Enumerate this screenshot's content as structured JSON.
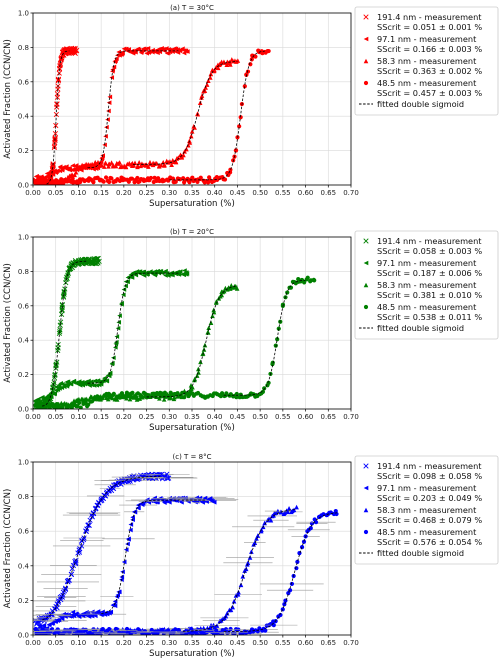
{
  "chart_data": [
    {
      "type": "scatter",
      "title": "(a) T = 30°C",
      "xlabel": "Supersaturation (%)",
      "ylabel": "Activated Fraction (CCN/CN)",
      "xlim": [
        0,
        0.7
      ],
      "ylim": [
        0,
        1.0
      ],
      "xticks": [
        "0.00",
        "0.05",
        "0.10",
        "0.15",
        "0.20",
        "0.25",
        "0.30",
        "0.35",
        "0.40",
        "0.45",
        "0.50",
        "0.55",
        "0.60",
        "0.65",
        "0.70"
      ],
      "yticks": [
        "0.0",
        "0.2",
        "0.4",
        "0.6",
        "0.8",
        "1.0"
      ],
      "grid": true,
      "legend_position": "right",
      "color": "#ff0000",
      "fit_label": "fitted double sigmoid",
      "error_bars": false,
      "series": [
        {
          "size": "191.4 nm - measurement",
          "sscrit": "SScrit = 0.051 ± 0.001 %",
          "marker": "x",
          "x_range": [
            0.005,
            0.095
          ],
          "plateau1": 0.02,
          "mid1": 0.0,
          "ss": 0.051,
          "plateau2": 0.78,
          "width": 0.004,
          "fit_range": [
            0.03,
            0.08
          ]
        },
        {
          "size": "97.1 nm - measurement",
          "sscrit": "SScrit = 0.166 ± 0.003 %",
          "marker": "triangle-left",
          "x_range": [
            0.005,
            0.34
          ],
          "plateau1": 0.04,
          "mid1": 0.1,
          "ss": 0.166,
          "plateau2": 0.78,
          "width": 0.006,
          "fit_range": [
            0.12,
            0.32
          ]
        },
        {
          "size": "58.3 nm - measurement",
          "sscrit": "SScrit = 0.363 ± 0.002 %",
          "marker": "triangle-up",
          "x_range": [
            0.005,
            0.45
          ],
          "plateau1": 0.02,
          "mid1": 0.12,
          "ss": 0.363,
          "plateau2": 0.72,
          "width": 0.015,
          "fit_range": [
            0.22,
            0.45
          ]
        },
        {
          "size": "48.5 nm - measurement",
          "sscrit": "SScrit = 0.457 ± 0.003 %",
          "marker": "circle",
          "x_range": [
            0.005,
            0.52
          ],
          "plateau1": 0.02,
          "mid1": 0.03,
          "ss": 0.457,
          "plateau2": 0.78,
          "width": 0.009,
          "fit_range": [
            0.3,
            0.51
          ]
        }
      ]
    },
    {
      "type": "scatter",
      "title": "(b) T = 20°C",
      "xlabel": "Supersaturation (%)",
      "ylabel": "Activated Fraction (CCN/CN)",
      "xlim": [
        0,
        0.7
      ],
      "ylim": [
        0,
        1.0
      ],
      "xticks": [
        "0.00",
        "0.05",
        "0.10",
        "0.15",
        "0.20",
        "0.25",
        "0.30",
        "0.35",
        "0.40",
        "0.45",
        "0.50",
        "0.55",
        "0.60",
        "0.65",
        "0.70"
      ],
      "yticks": [
        "0.0",
        "0.2",
        "0.4",
        "0.6",
        "0.8",
        "1.0"
      ],
      "grid": true,
      "legend_position": "right",
      "color": "#008000",
      "fit_label": "fitted double sigmoid",
      "error_bars": false,
      "series": [
        {
          "size": "191.4 nm - measurement",
          "sscrit": "SScrit = 0.058 ± 0.003 %",
          "marker": "x",
          "x_range": [
            0.005,
            0.145
          ],
          "plateau1": 0.03,
          "mid1": 0.0,
          "ss": 0.058,
          "plateau2": 0.86,
          "width": 0.008,
          "fit_range": [
            0.02,
            0.12
          ]
        },
        {
          "size": "97.1 nm - measurement",
          "sscrit": "SScrit = 0.187 ± 0.006 %",
          "marker": "triangle-left",
          "x_range": [
            0.005,
            0.34
          ],
          "plateau1": 0.05,
          "mid1": 0.15,
          "ss": 0.187,
          "plateau2": 0.79,
          "width": 0.008,
          "fit_range": [
            0.12,
            0.32
          ]
        },
        {
          "size": "58.3 nm - measurement",
          "sscrit": "SScrit = 0.381 ± 0.010 %",
          "marker": "triangle-up",
          "x_range": [
            0.005,
            0.45
          ],
          "plateau1": 0.02,
          "mid1": 0.07,
          "ss": 0.381,
          "plateau2": 0.72,
          "width": 0.014,
          "fit_range": [
            0.25,
            0.45
          ]
        },
        {
          "size": "48.5 nm - measurement",
          "sscrit": "SScrit = 0.538 ± 0.011 %",
          "marker": "circle",
          "x_range": [
            0.02,
            0.62
          ],
          "plateau1": 0.02,
          "mid1": 0.08,
          "ss": 0.538,
          "plateau2": 0.75,
          "width": 0.01,
          "fit_range": [
            0.42,
            0.6
          ]
        }
      ]
    },
    {
      "type": "scatter",
      "title": "(c) T = 8°C",
      "xlabel": "Supersaturation (%)",
      "ylabel": "Activated Fraction (CCN/CN)",
      "xlim": [
        0,
        0.7
      ],
      "ylim": [
        0,
        1.0
      ],
      "xticks": [
        "0.00",
        "0.05",
        "0.10",
        "0.15",
        "0.20",
        "0.25",
        "0.30",
        "0.35",
        "0.40",
        "0.45",
        "0.50",
        "0.55",
        "0.60",
        "0.65",
        "0.70"
      ],
      "yticks": [
        "0.0",
        "0.2",
        "0.4",
        "0.6",
        "0.8",
        "1.0"
      ],
      "grid": true,
      "legend_position": "right",
      "color": "#0000ff",
      "fit_label": "fitted double sigmoid",
      "error_bars": true,
      "series": [
        {
          "size": "191.4 nm - measurement",
          "sscrit": "SScrit = 0.098 ± 0.058 %",
          "marker": "x",
          "x_range": [
            0.005,
            0.3
          ],
          "plateau1": 0.04,
          "mid1": 0.0,
          "ss": 0.098,
          "plateau2": 0.92,
          "width": 0.03,
          "fit_range": [
            0.02,
            0.28
          ]
        },
        {
          "size": "97.1 nm - measurement",
          "sscrit": "SScrit = 0.203 ± 0.049 %",
          "marker": "triangle-left",
          "x_range": [
            0.005,
            0.4
          ],
          "plateau1": 0.04,
          "mid1": 0.12,
          "ss": 0.203,
          "plateau2": 0.78,
          "width": 0.01,
          "fit_range": [
            0.15,
            0.38
          ]
        },
        {
          "size": "58.3 nm - measurement",
          "sscrit": "SScrit = 0.468 ± 0.079 %",
          "marker": "triangle-up",
          "x_range": [
            0.005,
            0.58
          ],
          "plateau1": 0.02,
          "mid1": 0.02,
          "ss": 0.468,
          "plateau2": 0.73,
          "width": 0.022,
          "fit_range": [
            0.33,
            0.58
          ]
        },
        {
          "size": "48.5 nm - measurement",
          "sscrit": "SScrit = 0.576 ± 0.054 %",
          "marker": "circle",
          "x_range": [
            0.005,
            0.67
          ],
          "plateau1": 0.02,
          "mid1": 0.02,
          "ss": 0.576,
          "plateau2": 0.71,
          "width": 0.018,
          "fit_range": [
            0.42,
            0.67
          ]
        }
      ]
    }
  ]
}
